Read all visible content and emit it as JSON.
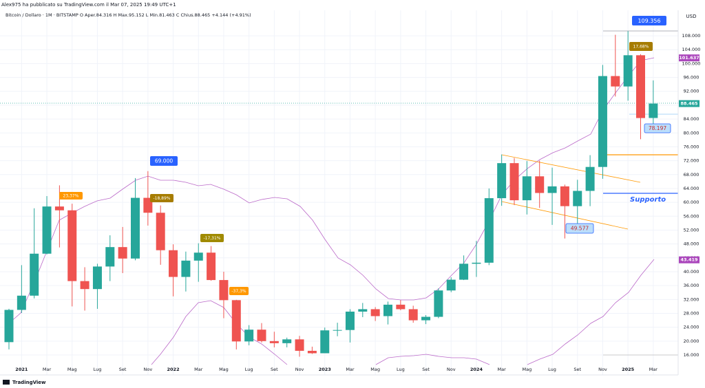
{
  "header": "Alex975 ha pubblicato su TradingView.com il Mar 07, 2025 19:49 UTC+1",
  "footer": "TradingView",
  "chart_data": {
    "type": "candlestick",
    "title": "Bitcoin / Dollaro · 1M · BITSTAMP  O Aper.84.316  H Max.95.152  L Min.81.463  C Chius.88.465  +4.144 (+4.91%)",
    "currency": "USD",
    "up_color": "#26a69a",
    "down_color": "#ef5350",
    "grid": true,
    "categories": [
      null,
      "2021",
      null,
      "Mar",
      null,
      "Mag",
      null,
      "Lug",
      null,
      "Set",
      null,
      "Nov",
      null,
      "2022",
      null,
      "Mar",
      null,
      "Mag",
      null,
      "Lug",
      null,
      "Set",
      null,
      "Nov",
      null,
      "2023",
      null,
      "Mar",
      null,
      "Mag",
      null,
      "Lug",
      null,
      "Set",
      null,
      "Nov",
      null,
      "2024",
      null,
      "Mar",
      null,
      "Mag",
      null,
      "Lug",
      null,
      "Set",
      null,
      "Nov",
      null,
      "2025",
      null,
      "Mar"
    ],
    "open": [
      19700,
      29000,
      33100,
      45200,
      58800,
      57700,
      37300,
      35000,
      41500,
      47100,
      43800,
      61300,
      57000,
      46200,
      38500,
      43200,
      45500,
      37600,
      31800,
      19900,
      23300,
      20000,
      19400,
      20500,
      17200,
      16500,
      23100,
      23200,
      28500,
      29200,
      27200,
      30500,
      29200,
      26000,
      27000,
      34600,
      37700,
      42300,
      42600,
      61200,
      71300,
      60600,
      67500,
      62700,
      64600,
      58900,
      63300,
      70200,
      96400,
      93400,
      102400,
      84316
    ],
    "high": [
      29300,
      41900,
      58300,
      61800,
      64900,
      59600,
      41300,
      42300,
      50500,
      52900,
      67000,
      69000,
      59100,
      47900,
      45800,
      48200,
      47400,
      40000,
      31900,
      24600,
      25200,
      22700,
      21000,
      21500,
      18400,
      23900,
      25300,
      29200,
      31000,
      29800,
      31400,
      31800,
      30200,
      27500,
      35200,
      38400,
      44700,
      48900,
      64000,
      73800,
      72800,
      71900,
      72000,
      70000,
      65100,
      66500,
      73600,
      99600,
      108300,
      109356,
      102700,
      95152
    ],
    "low": [
      17600,
      28100,
      32300,
      45000,
      47000,
      30000,
      28800,
      29300,
      37300,
      39600,
      43300,
      53300,
      42000,
      32900,
      34300,
      37100,
      37400,
      26600,
      17600,
      18800,
      19600,
      18200,
      18200,
      15500,
      16300,
      16500,
      21400,
      19600,
      26900,
      25800,
      24800,
      28900,
      25300,
      24900,
      26600,
      34100,
      37600,
      38500,
      41900,
      59000,
      59200,
      56500,
      58400,
      53500,
      49577,
      52600,
      58900,
      66800,
      90500,
      89300,
      78197,
      81463
    ],
    "close": [
      29000,
      33100,
      45200,
      58800,
      57700,
      37300,
      35000,
      41500,
      47100,
      43800,
      61300,
      57000,
      46200,
      38500,
      43200,
      45500,
      37600,
      31800,
      19900,
      23300,
      20000,
      19400,
      20500,
      17200,
      16500,
      23100,
      23200,
      28500,
      29200,
      27200,
      30500,
      29200,
      26000,
      27000,
      34600,
      37700,
      42300,
      42600,
      61200,
      71300,
      60600,
      67500,
      62700,
      64600,
      58900,
      63300,
      70200,
      96400,
      93400,
      102400,
      84300,
      88465
    ],
    "ylim": [
      10250,
      115350
    ],
    "yticks": [
      {
        "value": 16000,
        "label": "16.000"
      },
      {
        "value": 20000,
        "label": "20.000"
      },
      {
        "value": 24000,
        "label": "24.000"
      },
      {
        "value": 28000,
        "label": "28.000"
      },
      {
        "value": 32000,
        "label": "32.000"
      },
      {
        "value": 36000,
        "label": "36.000"
      },
      {
        "value": 40000,
        "label": "40.000"
      },
      {
        "value": 44000,
        "label": "44.000"
      },
      {
        "value": 48000,
        "label": "48.000"
      },
      {
        "value": 52000,
        "label": "52.000"
      },
      {
        "value": 56000,
        "label": "56.000"
      },
      {
        "value": 60000,
        "label": "60.000"
      },
      {
        "value": 64000,
        "label": "64.000"
      },
      {
        "value": 68000,
        "label": "68.000"
      },
      {
        "value": 72000,
        "label": "72.000"
      },
      {
        "value": 76000,
        "label": "76.000"
      },
      {
        "value": 80000,
        "label": "80.000"
      },
      {
        "value": 84000,
        "label": "84.000"
      },
      {
        "value": 88000,
        "label": "88.000"
      },
      {
        "value": 92000,
        "label": "92.000"
      },
      {
        "value": 96000,
        "label": "96.000"
      },
      {
        "value": 100000,
        "label": "100.000"
      },
      {
        "value": 104000,
        "label": "104.000"
      },
      {
        "value": 108000,
        "label": "108.000"
      }
    ],
    "price_labels": [
      {
        "value": 101637,
        "label": "101.637",
        "color": "#ab47bc"
      },
      {
        "value": 88465,
        "label": "88.465",
        "color": "#26a69a"
      },
      {
        "value": 43419,
        "label": "43.419",
        "color": "#ab47bc"
      }
    ],
    "annotations": [
      "109.356",
      "69.000",
      "49.577",
      "78.197",
      "23,37%",
      "-18,89%",
      "-17,31%",
      "-37,3%",
      "17,68%",
      "Supporto"
    ]
  }
}
